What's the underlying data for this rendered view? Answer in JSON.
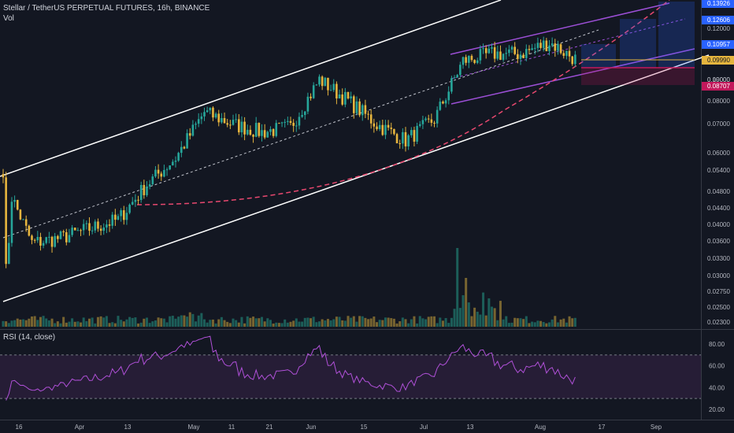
{
  "header": {
    "title": "Stellar / TetherUS PERPETUAL FUTURES, 16h, BINANCE",
    "vol_label": "Vol"
  },
  "rsi": {
    "label": "RSI (14, close)",
    "ticks": [
      "80.00",
      "60.00",
      "40.00",
      "20.00"
    ],
    "upper_band": 70,
    "lower_band": 30
  },
  "colors": {
    "background": "#131722",
    "up": "#26a69a",
    "down": "#e6b53e",
    "channel": "#ffffff",
    "purple": "#9c4fd6",
    "dashed_red": "#e8486f",
    "rsi_line": "#b050d8",
    "rsi_fill": "#2a1f3a"
  },
  "chart_data": {
    "type": "candlestick",
    "price_scale": "log",
    "y_ticks": [
      "0.12000",
      "0.10000",
      "0.09000",
      "0.08000",
      "0.07000",
      "0.06000",
      "0.05400",
      "0.04800",
      "0.04400",
      "0.04000",
      "0.03600",
      "0.03300",
      "0.03000",
      "0.02750",
      "0.02500",
      "0.02300"
    ],
    "x_ticks": [
      "16",
      "Apr",
      "13",
      "May",
      "11",
      "21",
      "Jun",
      "15",
      "Jul",
      "13",
      "Aug",
      "17",
      "Sep"
    ],
    "price_badges": [
      {
        "value": "0.13926",
        "color": "#2962ff"
      },
      {
        "value": "0.12606",
        "color": "#2962ff"
      },
      {
        "value": "0.10957",
        "color": "#2962ff"
      },
      {
        "value": "0.09990",
        "color": "#e6b53e"
      },
      {
        "value": "0.08707",
        "color": "#c2185b"
      }
    ],
    "price_path_approx": [
      [
        0.033,
        0.052
      ],
      [
        0.036,
        0.036
      ],
      [
        0.04,
        0.037
      ],
      [
        0.042,
        0.039
      ],
      [
        0.044,
        0.041
      ],
      [
        0.047,
        0.05
      ],
      [
        0.053,
        0.058
      ],
      [
        0.063,
        0.075
      ],
      [
        0.072,
        0.07
      ],
      [
        0.068,
        0.067
      ],
      [
        0.063,
        0.069
      ],
      [
        0.072,
        0.09
      ],
      [
        0.085,
        0.08
      ],
      [
        0.072,
        0.07
      ],
      [
        0.068,
        0.064
      ],
      [
        0.06,
        0.072
      ],
      [
        0.08,
        0.1
      ],
      [
        0.107,
        0.104
      ],
      [
        0.103,
        0.104
      ],
      [
        0.106,
        0.111
      ],
      [
        0.108,
        0.1
      ]
    ]
  }
}
